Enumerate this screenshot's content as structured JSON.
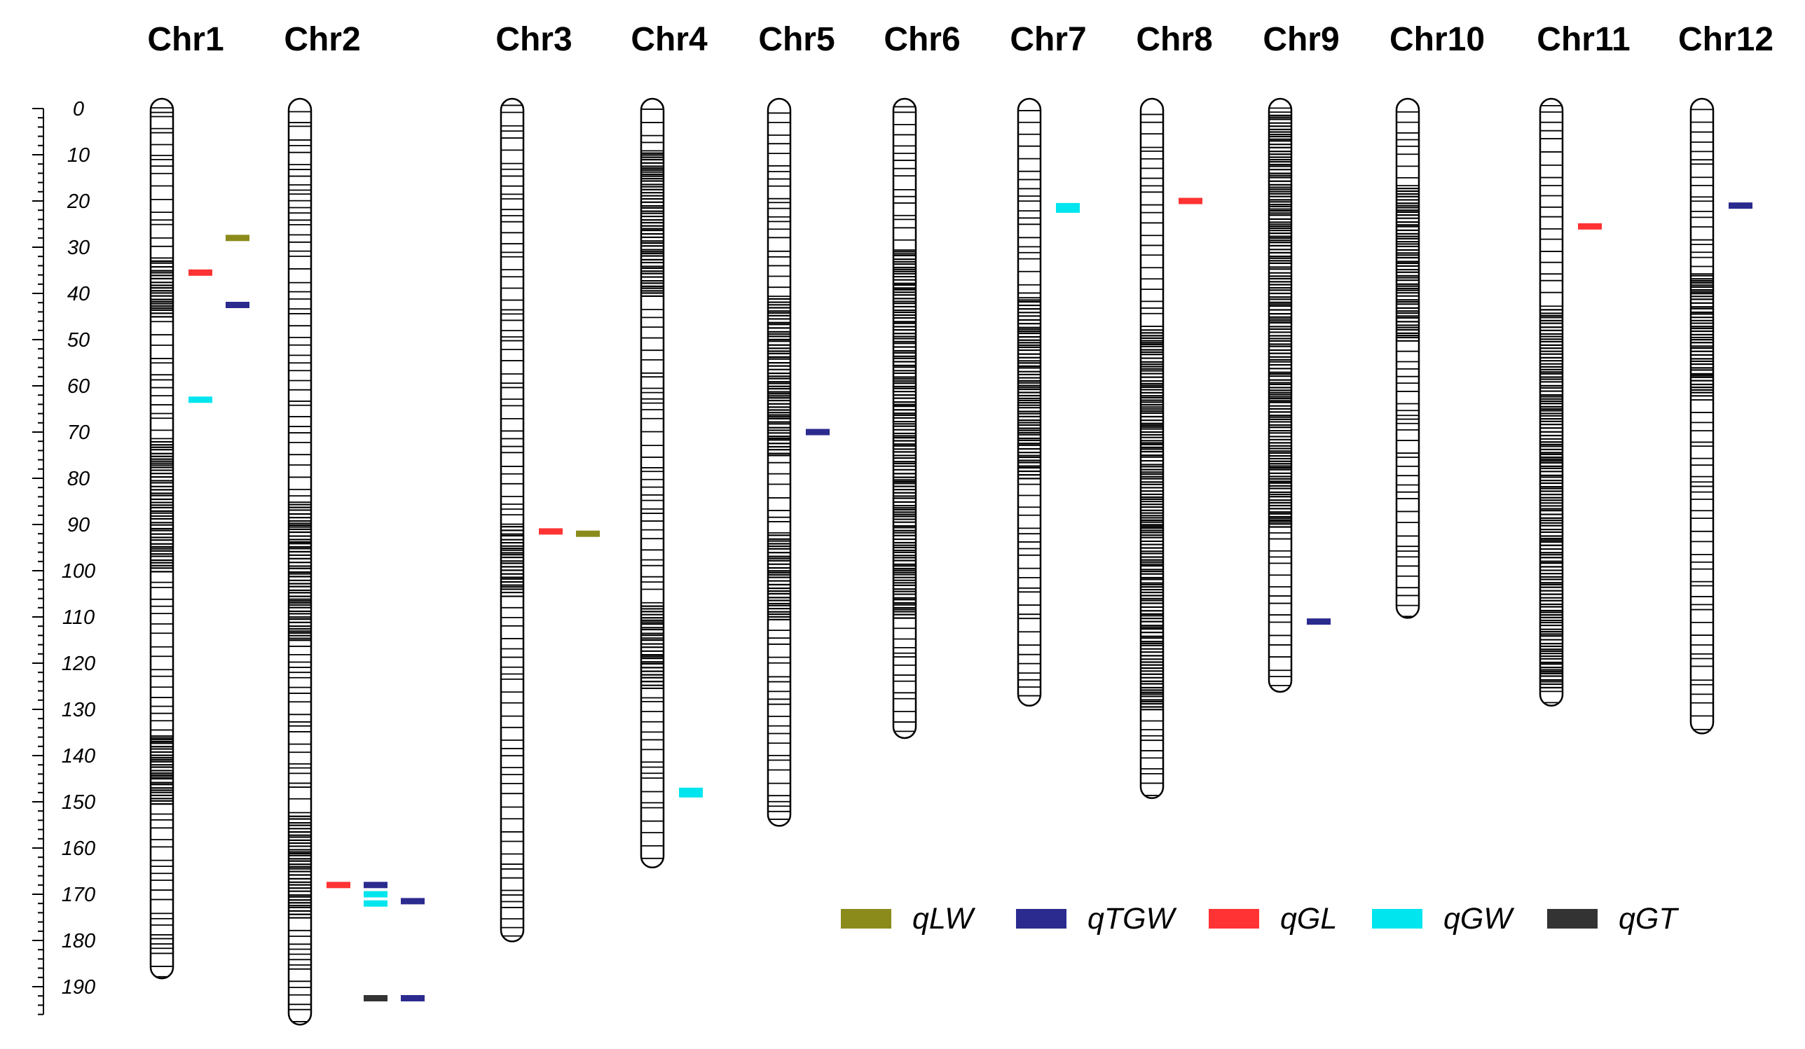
{
  "chart_data": {
    "type": "genetic-linkage-map",
    "axis": {
      "unit": "",
      "min": 0,
      "max": 196,
      "tick_labels": [
        "0",
        "10",
        "20",
        "30",
        "40",
        "50",
        "60",
        "70",
        "80",
        "90",
        "100",
        "110",
        "120",
        "130",
        "140",
        "150",
        "160",
        "170",
        "180",
        "190"
      ]
    },
    "legend_placement": "bottom-right",
    "legend": [
      {
        "name": "qLW",
        "color": "#8b8b1c"
      },
      {
        "name": "qTGW",
        "color": "#2b2b8f"
      },
      {
        "name": "qGL",
        "color": "#ff3333"
      },
      {
        "name": "qGW",
        "color": "#00e5ee"
      },
      {
        "name": "qGT",
        "color": "#333333"
      }
    ],
    "chromosomes": [
      {
        "name": "Chr1",
        "length": 187,
        "dense": [
          [
            30,
            45
          ],
          [
            70,
            100
          ],
          [
            135,
            150
          ]
        ]
      },
      {
        "name": "Chr2",
        "length": 197,
        "dense": [
          [
            85,
            115
          ],
          [
            150,
            175
          ]
        ]
      },
      {
        "name": "Chr3",
        "length": 179,
        "dense": [
          [
            88,
            105
          ]
        ]
      },
      {
        "name": "Chr4",
        "length": 163,
        "dense": [
          [
            8,
            40
          ],
          [
            105,
            125
          ]
        ]
      },
      {
        "name": "Chr5",
        "length": 154,
        "dense": [
          [
            40,
            75
          ],
          [
            90,
            110
          ]
        ]
      },
      {
        "name": "Chr6",
        "length": 135,
        "dense": [
          [
            30,
            110
          ]
        ]
      },
      {
        "name": "Chr7",
        "length": 128,
        "dense": [
          [
            40,
            80
          ]
        ]
      },
      {
        "name": "Chr8",
        "length": 148,
        "dense": [
          [
            45,
            130
          ]
        ]
      },
      {
        "name": "Chr9",
        "length": 125,
        "dense": [
          [
            0,
            90
          ]
        ]
      },
      {
        "name": "Chr10",
        "length": 109,
        "dense": [
          [
            15,
            50
          ]
        ]
      },
      {
        "name": "Chr11",
        "length": 128,
        "dense": [
          [
            40,
            125
          ]
        ]
      },
      {
        "name": "Chr12",
        "length": 134,
        "dense": [
          [
            35,
            62
          ]
        ]
      }
    ],
    "qtls": [
      {
        "chr": "Chr1",
        "trait": "qLW",
        "position": 28,
        "col": 2
      },
      {
        "chr": "Chr1",
        "trait": "qGL",
        "position": 35.5,
        "col": 1
      },
      {
        "chr": "Chr1",
        "trait": "qTGW",
        "position": 42.5,
        "col": 2
      },
      {
        "chr": "Chr1",
        "trait": "qGW",
        "position": 63,
        "col": 1
      },
      {
        "chr": "Chr2",
        "trait": "qGL",
        "position": 168,
        "col": 1
      },
      {
        "chr": "Chr2",
        "trait": "qTGW",
        "position": 168,
        "col": 2
      },
      {
        "chr": "Chr2",
        "trait": "qGW",
        "position": 170,
        "col": 2
      },
      {
        "chr": "Chr2",
        "trait": "qGW",
        "position": 172,
        "col": 2
      },
      {
        "chr": "Chr2",
        "trait": "qTGW",
        "position": 171.5,
        "col": 3
      },
      {
        "chr": "Chr2",
        "trait": "qGT",
        "position": 192.5,
        "col": 2
      },
      {
        "chr": "Chr2",
        "trait": "qTGW",
        "position": 192.5,
        "col": 3
      },
      {
        "chr": "Chr3",
        "trait": "qGL",
        "position": 91.5,
        "col": 1
      },
      {
        "chr": "Chr3",
        "trait": "qLW",
        "position": 92,
        "col": 2
      },
      {
        "chr": "Chr4",
        "trait": "qGW",
        "position": 148,
        "col": 1
      },
      {
        "chr": "Chr5",
        "trait": "qTGW",
        "position": 70,
        "col": 1
      },
      {
        "chr": "Chr7",
        "trait": "qGW",
        "position": 21.5,
        "col": 1
      },
      {
        "chr": "Chr8",
        "trait": "qGL",
        "position": 20,
        "col": 1
      },
      {
        "chr": "Chr9",
        "trait": "qTGW",
        "position": 111,
        "col": 1
      },
      {
        "chr": "Chr11",
        "trait": "qGL",
        "position": 25.5,
        "col": 1
      },
      {
        "chr": "Chr12",
        "trait": "qTGW",
        "position": 21,
        "col": 1
      }
    ]
  }
}
